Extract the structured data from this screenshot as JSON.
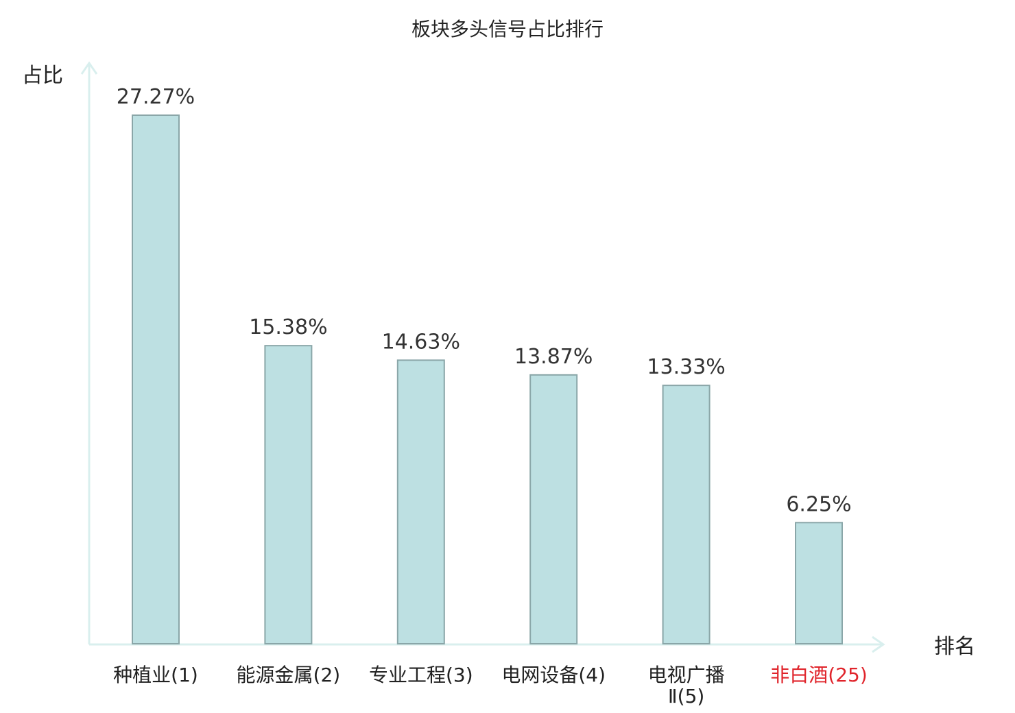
{
  "chart_data": {
    "type": "bar",
    "title": "板块多头信号占比排行",
    "ylabel": "占比",
    "xlabel": "排名",
    "categories": [
      {
        "name": "种植业",
        "rank": "(1)"
      },
      {
        "name": "能源金属",
        "rank": "(2)"
      },
      {
        "name": "专业工程",
        "rank": "(3)"
      },
      {
        "name": "电网设备",
        "rank": "(4)"
      },
      {
        "name": "电视广播",
        "name2": "Ⅱ",
        "rank": "(5)"
      },
      {
        "name": "非白酒",
        "rank": "(25)",
        "highlight": true
      }
    ],
    "values": [
      27.27,
      15.38,
      14.63,
      13.87,
      13.33,
      6.25
    ],
    "value_labels": [
      "27.27%",
      "15.38%",
      "14.63%",
      "13.87%",
      "13.33%",
      "6.25%"
    ],
    "ylim": [
      0,
      27.27
    ],
    "grid": false,
    "colors": {
      "bar_fill": "#bde0e2",
      "bar_stroke": "#8aa6a8",
      "axis": "#d9efee",
      "highlight": "#e0242b"
    }
  }
}
